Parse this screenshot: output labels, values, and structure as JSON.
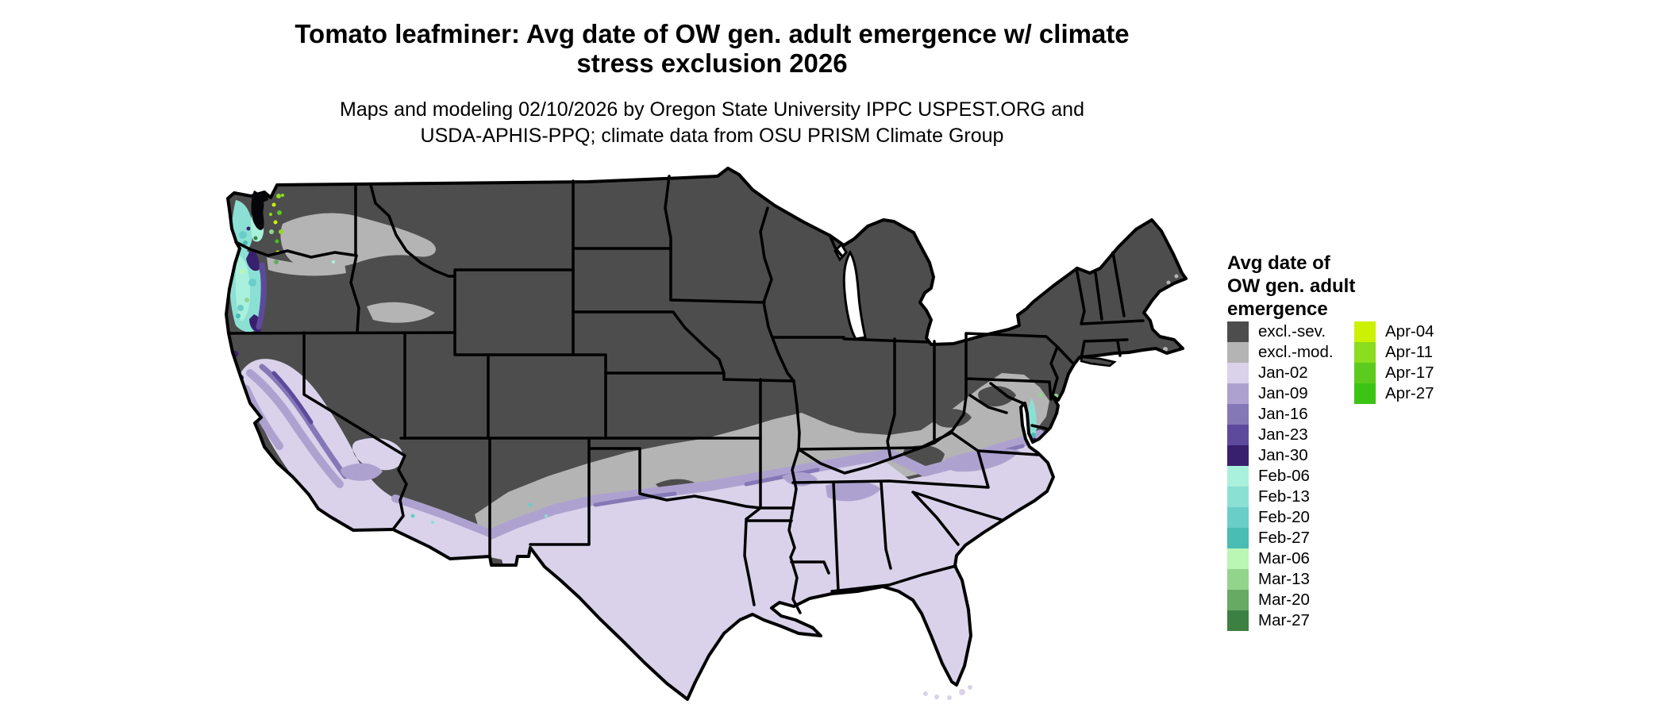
{
  "header": {
    "title_line1": "Tomato leafminer: Avg date of OW gen. adult emergence w/ climate",
    "title_line2": "stress exclusion 2026",
    "subtitle_line1": "Maps and modeling 02/10/2026 by Oregon State University IPPC USPEST.ORG and",
    "subtitle_line2": "USDA-APHIS-PPQ; climate data from OSU PRISM Climate Group"
  },
  "legend": {
    "title_line1": "Avg date of",
    "title_line2": "OW gen. adult",
    "title_line3": "emergence",
    "columns": [
      {
        "items": [
          {
            "key": "excl_sev",
            "label": "excl.-sev.",
            "color": "#4d4d4d"
          },
          {
            "key": "excl_mod",
            "label": "excl.-mod.",
            "color": "#b4b4b4"
          },
          {
            "key": "jan02",
            "label": "Jan-02",
            "color": "#d9d2ea"
          },
          {
            "key": "jan09",
            "label": "Jan-09",
            "color": "#ada2cf"
          },
          {
            "key": "jan16",
            "label": "Jan-16",
            "color": "#8478b6"
          },
          {
            "key": "jan23",
            "label": "Jan-23",
            "color": "#5d4a9d"
          },
          {
            "key": "jan30",
            "label": "Jan-30",
            "color": "#38206f"
          },
          {
            "key": "feb06",
            "label": "Feb-06",
            "color": "#a9f1dc"
          },
          {
            "key": "feb13",
            "label": "Feb-13",
            "color": "#8be0d4"
          },
          {
            "key": "feb20",
            "label": "Feb-20",
            "color": "#69cec7"
          },
          {
            "key": "feb27",
            "label": "Feb-27",
            "color": "#49bcb4"
          },
          {
            "key": "mar06",
            "label": "Mar-06",
            "color": "#baf6b4"
          },
          {
            "key": "mar13",
            "label": "Mar-13",
            "color": "#93d48d"
          },
          {
            "key": "mar20",
            "label": "Mar-20",
            "color": "#66aa63"
          },
          {
            "key": "mar27",
            "label": "Mar-27",
            "color": "#3d8043"
          }
        ]
      },
      {
        "items": [
          {
            "key": "apr04",
            "label": "Apr-04",
            "color": "#ccf102"
          },
          {
            "key": "apr11",
            "label": "Apr-11",
            "color": "#8cdc1f"
          },
          {
            "key": "apr17",
            "label": "Apr-17",
            "color": "#5ccb1d"
          },
          {
            "key": "apr27",
            "label": "Apr-27",
            "color": "#3cc414"
          }
        ]
      }
    ]
  },
  "map_summary": {
    "type": "choropleth-map",
    "extent": "contiguous United States with state borders",
    "regions": [
      {
        "area": "northern U.S. (Pacific NW interior, Rockies, Plains, Midwest, Northeast)",
        "value": "excl.-sev."
      },
      {
        "area": "transition band: eastern WA/OR basin, southern Plains, Ozarks, Tennessee, Virginia piedmont",
        "value": "excl.-mod."
      },
      {
        "area": "southern tier: Texas, Gulf states, Florida, southeast coastal plain, California valleys, southern AZ/NM",
        "value": "Jan-02 with Jan-09/Jan-16 fringes"
      },
      {
        "area": "northern California coast, Sierra/Oregon coast range edges",
        "value": "Jan-23/Jan-30"
      },
      {
        "area": "western Oregon and western Washington lowlands, Chesapeake shore",
        "value": "Feb-06 to Feb-27"
      },
      {
        "area": "Puget Sound vicinity and Delmarva spots",
        "value": "Mar-06 to Apr-27 specks"
      }
    ]
  }
}
